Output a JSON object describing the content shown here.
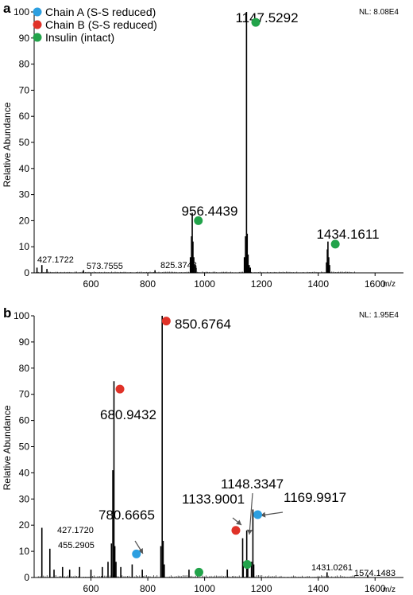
{
  "legend": {
    "items": [
      {
        "label": "Chain A (S-S reduced)",
        "color": "#2c9fe0"
      },
      {
        "label": "Chain B (S-S reduced)",
        "color": "#e03228"
      },
      {
        "label": "Insulin (intact)",
        "color": "#22a34a"
      }
    ]
  },
  "chart_data": [
    {
      "type": "line",
      "panel": "a",
      "nl": "NL: 8.08E4",
      "ylabel": "Relative Abundance",
      "xlabel": "m/z",
      "xlim": [
        400,
        1700
      ],
      "ylim": [
        0,
        100
      ],
      "xticks": [
        "600",
        "800",
        "1000",
        "1200",
        "1400",
        "1600"
      ],
      "yticks": [
        "0",
        "10",
        "20",
        "30",
        "40",
        "50",
        "60",
        "70",
        "80",
        "90",
        "100"
      ],
      "peaks": [
        {
          "x": 410,
          "y": 2
        },
        {
          "x": 427.17,
          "y": 3
        },
        {
          "x": 445,
          "y": 1.5
        },
        {
          "x": 573.76,
          "y": 1
        },
        {
          "x": 825.37,
          "y": 1
        },
        {
          "x": 950,
          "y": 6
        },
        {
          "x": 954,
          "y": 14
        },
        {
          "x": 956.44,
          "y": 23
        },
        {
          "x": 959,
          "y": 12
        },
        {
          "x": 962,
          "y": 6
        },
        {
          "x": 966,
          "y": 3
        },
        {
          "x": 970,
          "y": 2
        },
        {
          "x": 1140,
          "y": 6
        },
        {
          "x": 1144,
          "y": 14
        },
        {
          "x": 1147.53,
          "y": 100
        },
        {
          "x": 1150,
          "y": 15
        },
        {
          "x": 1153,
          "y": 7
        },
        {
          "x": 1157,
          "y": 3
        },
        {
          "x": 1161,
          "y": 2
        },
        {
          "x": 1429,
          "y": 4
        },
        {
          "x": 1432,
          "y": 9
        },
        {
          "x": 1434.16,
          "y": 12
        },
        {
          "x": 1437,
          "y": 6
        },
        {
          "x": 1440,
          "y": 3
        }
      ],
      "annotations": [
        {
          "text": "1147.5292",
          "x": 1147.53,
          "y": 100,
          "size": "big"
        },
        {
          "text": "956.4439",
          "x": 956.44,
          "y": 23,
          "size": "big"
        },
        {
          "text": "1434.1611",
          "x": 1434.16,
          "y": 12,
          "size": "big"
        },
        {
          "text": "427.1722",
          "x": 427.17,
          "y": 3,
          "size": "small"
        },
        {
          "text": "573.7555",
          "x": 573.76,
          "y": 1,
          "size": "small"
        },
        {
          "text": "825.3748",
          "x": 825.37,
          "y": 1,
          "size": "small"
        }
      ],
      "markers": [
        {
          "species": "Insulin (intact)",
          "x": 1180,
          "y": 96
        },
        {
          "species": "Insulin (intact)",
          "x": 978,
          "y": 20
        },
        {
          "species": "Insulin (intact)",
          "x": 1460,
          "y": 11
        }
      ]
    },
    {
      "type": "line",
      "panel": "b",
      "nl": "NL: 1.95E4",
      "ylabel": "Relative Abundance",
      "xlabel": "m/z",
      "xlim": [
        400,
        1700
      ],
      "ylim": [
        0,
        100
      ],
      "xticks": [
        "600",
        "800",
        "1000",
        "1200",
        "1400",
        "1600"
      ],
      "yticks": [
        "0",
        "10",
        "20",
        "30",
        "40",
        "50",
        "60",
        "70",
        "80",
        "90",
        "100"
      ],
      "peaks": [
        {
          "x": 427.17,
          "y": 19
        },
        {
          "x": 455.29,
          "y": 11
        },
        {
          "x": 470,
          "y": 3
        },
        {
          "x": 500,
          "y": 4
        },
        {
          "x": 525,
          "y": 3
        },
        {
          "x": 560,
          "y": 4
        },
        {
          "x": 600,
          "y": 3
        },
        {
          "x": 640,
          "y": 4
        },
        {
          "x": 660,
          "y": 6
        },
        {
          "x": 672,
          "y": 13
        },
        {
          "x": 677,
          "y": 41
        },
        {
          "x": 680.94,
          "y": 75
        },
        {
          "x": 684,
          "y": 12
        },
        {
          "x": 688,
          "y": 6
        },
        {
          "x": 705,
          "y": 4
        },
        {
          "x": 745,
          "y": 5
        },
        {
          "x": 780.67,
          "y": 3
        },
        {
          "x": 846,
          "y": 12
        },
        {
          "x": 850.68,
          "y": 100
        },
        {
          "x": 854,
          "y": 14
        },
        {
          "x": 858,
          "y": 5
        },
        {
          "x": 945,
          "y": 3
        },
        {
          "x": 1080,
          "y": 3
        },
        {
          "x": 1133.9,
          "y": 15
        },
        {
          "x": 1136,
          "y": 6
        },
        {
          "x": 1148.33,
          "y": 18
        },
        {
          "x": 1152,
          "y": 5
        },
        {
          "x": 1165,
          "y": 6
        },
        {
          "x": 1169.99,
          "y": 26
        },
        {
          "x": 1173,
          "y": 5
        },
        {
          "x": 1431.03,
          "y": 2
        },
        {
          "x": 1574.15,
          "y": 1
        }
      ],
      "annotations": [
        {
          "text": "850.6764",
          "x": 850.68,
          "y": 100,
          "size": "big"
        },
        {
          "text": "680.9432",
          "x": 680.94,
          "y": 75,
          "size": "big"
        },
        {
          "text": "780.6665",
          "x": 780.67,
          "y": 3,
          "size": "big"
        },
        {
          "text": "1148.3347",
          "x": 1148.33,
          "y": 18,
          "size": "big"
        },
        {
          "text": "1133.9001",
          "x": 1133.9,
          "y": 15,
          "size": "big"
        },
        {
          "text": "1169.9917",
          "x": 1169.99,
          "y": 26,
          "size": "big"
        },
        {
          "text": "427.1720",
          "x": 427.17,
          "y": 19,
          "size": "small"
        },
        {
          "text": "455.2905",
          "x": 455.29,
          "y": 11,
          "size": "small"
        },
        {
          "text": "1431.0261",
          "x": 1431.03,
          "y": 2,
          "size": "small"
        },
        {
          "text": "1574.1483",
          "x": 1574.15,
          "y": 1,
          "size": "small"
        }
      ],
      "markers": [
        {
          "species": "Chain B (S-S reduced)",
          "x": 865,
          "y": 98
        },
        {
          "species": "Chain B (S-S reduced)",
          "x": 702,
          "y": 72
        },
        {
          "species": "Chain B (S-S reduced)",
          "x": 1110,
          "y": 18
        },
        {
          "species": "Chain A (S-S reduced)",
          "x": 760,
          "y": 9
        },
        {
          "species": "Chain A (S-S reduced)",
          "x": 1187,
          "y": 24
        },
        {
          "species": "Insulin (intact)",
          "x": 980,
          "y": 2
        },
        {
          "species": "Insulin (intact)",
          "x": 1150,
          "y": 5
        }
      ]
    }
  ]
}
